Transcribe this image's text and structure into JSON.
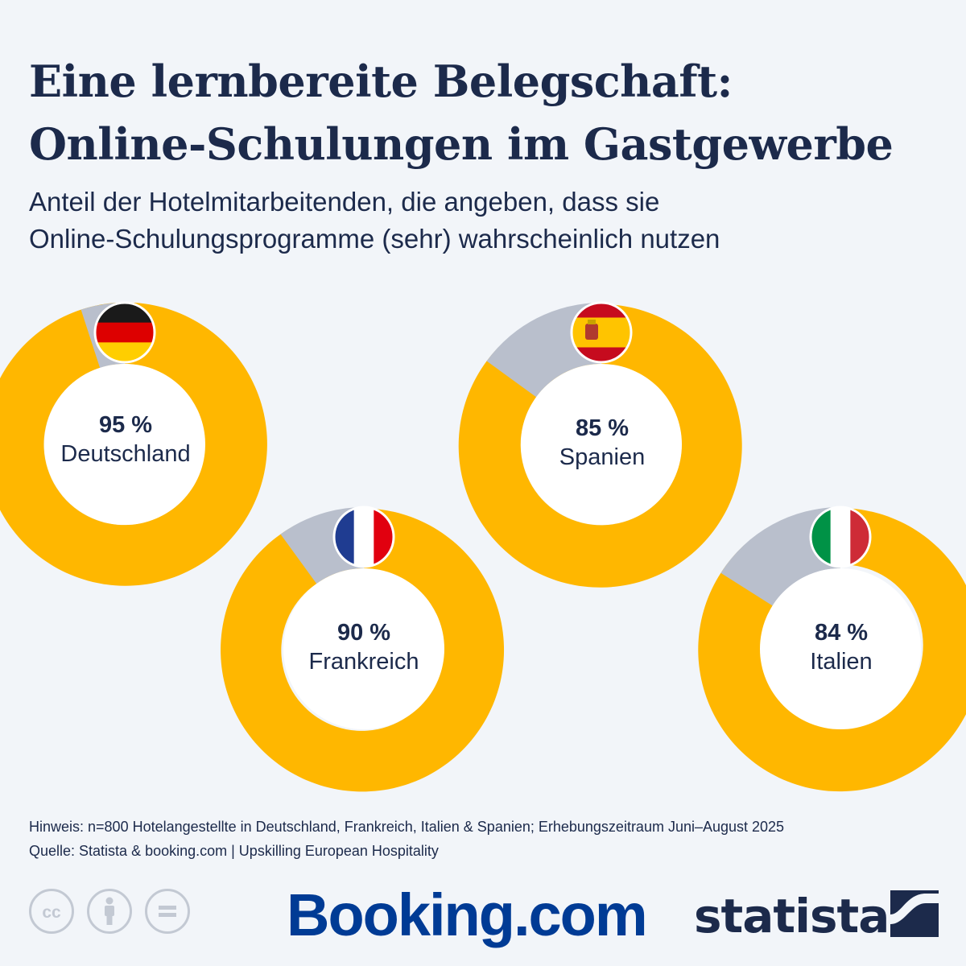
{
  "header": {
    "title_line1": "Eine lernbereite Belegschaft:",
    "title_line2": "Online-Schulungen im Gastgewerbe",
    "subtitle_line1": "Anteil der Hotelmitarbeitenden, die angeben, dass sie",
    "subtitle_line2": "Online-Schulungsprogramme (sehr) wahrscheinlich nutzen"
  },
  "colors": {
    "primary": "#ffb700",
    "remainder": "#b9bfcc",
    "text": "#1c2a4b",
    "background": "#f2f5f9"
  },
  "chart_data": {
    "type": "donut",
    "categories": [
      "Deutschland",
      "Frankreich",
      "Spanien",
      "Italien"
    ],
    "values": [
      95,
      90,
      85,
      84
    ],
    "labels": [
      "95 %",
      "90 %",
      "85 %",
      "84 %"
    ],
    "unit": "%",
    "flags": [
      "germany-flag-icon",
      "france-flag-icon",
      "spain-flag-icon",
      "italy-flag-icon"
    ]
  },
  "footer": {
    "note": "Hinweis: n=800 Hotelangestellte in Deutschland, Frankreich, Italien & Spanien; Erhebungszeitraum Juni–August 2025",
    "source": "Quelle: Statista & booking.com | Upskilling European Hospitality",
    "booking_logo": "Booking.com",
    "statista_logo": "statista"
  }
}
